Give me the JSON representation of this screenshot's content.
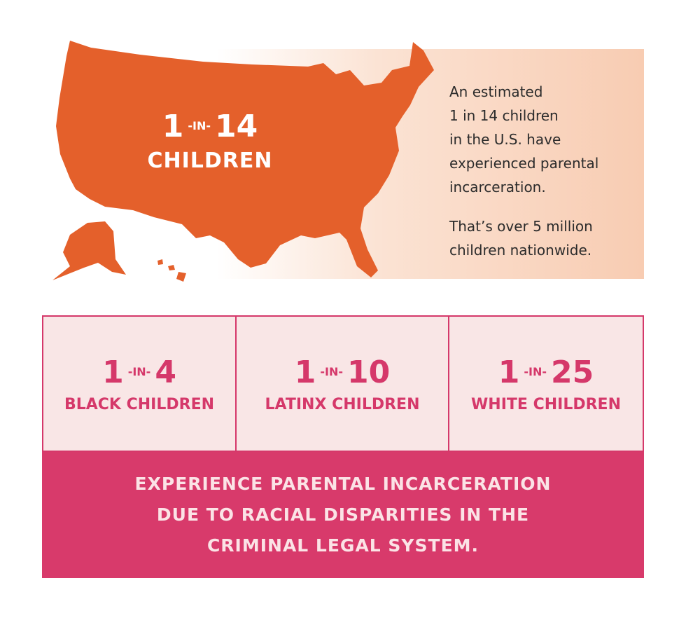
{
  "top": {
    "stat": {
      "left": "1",
      "connector": "-IN-",
      "right": "14",
      "label": "CHILDREN"
    },
    "paragraphs": [
      [
        "An estimated",
        "1 in 14 children",
        "in the U.S. have",
        "experienced parental",
        "incarceration."
      ],
      [
        "That’s over 5 million",
        "children nationwide."
      ]
    ]
  },
  "groups": [
    {
      "left": "1",
      "connector": "-IN-",
      "right": "4",
      "label": "BLACK CHILDREN"
    },
    {
      "left": "1",
      "connector": "-IN-",
      "right": "10",
      "label": "LATINX CHILDREN"
    },
    {
      "left": "1",
      "connector": "-IN-",
      "right": "25",
      "label": "WHITE CHILDREN"
    }
  ],
  "footer": {
    "lines": [
      "EXPERIENCE PARENTAL INCARCERATION",
      "DUE TO RACIAL DISPARITIES IN THE",
      "CRIMINAL LEGAL SYSTEM."
    ]
  }
}
